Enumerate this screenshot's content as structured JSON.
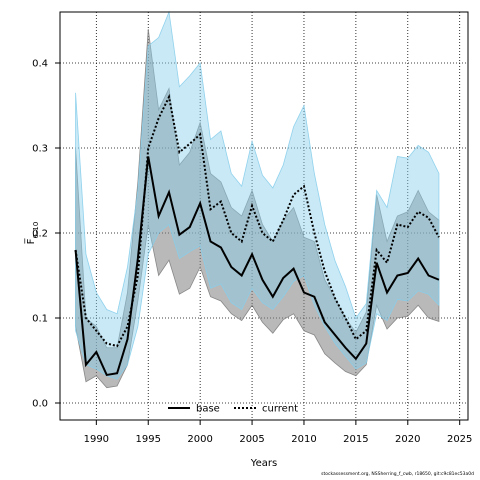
{
  "chart_data": {
    "type": "line",
    "title": "",
    "xlabel": "Years",
    "ylabel": "F̅",
    "ylabel_subscript": "6–10",
    "xlim": [
      1986.5,
      2025.8
    ],
    "ylim": [
      -0.02,
      0.46
    ],
    "x_ticks": [
      1990,
      1995,
      2000,
      2005,
      2010,
      2015,
      2020,
      2025
    ],
    "y_ticks": [
      0.0,
      0.1,
      0.2,
      0.3,
      0.4
    ],
    "y_tick_labels": [
      "0.0",
      "0.1",
      "0.2",
      "0.3",
      "0.4"
    ],
    "grid": true,
    "legend_placement": "bottom-center",
    "x": [
      1988,
      1989,
      1990,
      1991,
      1992,
      1993,
      1994,
      1995,
      1996,
      1997,
      1998,
      1999,
      2000,
      2001,
      2002,
      2003,
      2004,
      2005,
      2006,
      2007,
      2008,
      2009,
      2010,
      2011,
      2012,
      2013,
      2014,
      2015,
      2016,
      2017,
      2018,
      2019,
      2020,
      2021,
      2022,
      2023
    ],
    "series": [
      {
        "name": "base",
        "color": "#000000",
        "band_color": "#808080",
        "dash": "solid",
        "values": [
          0.18,
          0.045,
          0.06,
          0.033,
          0.035,
          0.075,
          0.17,
          0.29,
          0.22,
          0.248,
          0.198,
          0.207,
          0.235,
          0.19,
          0.183,
          0.16,
          0.15,
          0.175,
          0.145,
          0.125,
          0.147,
          0.158,
          0.13,
          0.125,
          0.095,
          0.08,
          0.065,
          0.052,
          0.07,
          0.165,
          0.13,
          0.15,
          0.153,
          0.17,
          0.15,
          0.145
        ],
        "lower": [
          0.09,
          0.025,
          0.032,
          0.018,
          0.02,
          0.045,
          0.12,
          0.21,
          0.15,
          0.168,
          0.128,
          0.135,
          0.16,
          0.125,
          0.12,
          0.105,
          0.097,
          0.115,
          0.095,
          0.082,
          0.098,
          0.105,
          0.085,
          0.08,
          0.058,
          0.047,
          0.037,
          0.032,
          0.045,
          0.115,
          0.087,
          0.1,
          0.102,
          0.115,
          0.1,
          0.096
        ],
        "upper": [
          0.3,
          0.1,
          0.09,
          0.065,
          0.065,
          0.13,
          0.26,
          0.44,
          0.345,
          0.37,
          0.28,
          0.295,
          0.33,
          0.27,
          0.26,
          0.23,
          0.22,
          0.25,
          0.21,
          0.19,
          0.215,
          0.23,
          0.195,
          0.19,
          0.145,
          0.123,
          0.1,
          0.083,
          0.107,
          0.245,
          0.19,
          0.22,
          0.225,
          0.25,
          0.225,
          0.215
        ]
      },
      {
        "name": "current",
        "color": "#000000",
        "band_color": "#87ceeb",
        "dash": "dotted",
        "values": [
          0.18,
          0.1,
          0.085,
          0.07,
          0.067,
          0.09,
          0.15,
          0.3,
          0.335,
          0.36,
          0.295,
          0.305,
          0.316,
          0.228,
          0.237,
          0.2,
          0.19,
          0.232,
          0.2,
          0.19,
          0.215,
          0.245,
          0.255,
          0.2,
          0.155,
          0.123,
          0.1,
          0.075,
          0.085,
          0.18,
          0.165,
          0.21,
          0.207,
          0.225,
          0.218,
          0.195
        ],
        "lower": [
          0.085,
          0.045,
          0.04,
          0.032,
          0.028,
          0.045,
          0.09,
          0.175,
          0.2,
          0.21,
          0.17,
          0.178,
          0.185,
          0.135,
          0.14,
          0.118,
          0.11,
          0.135,
          0.118,
          0.11,
          0.125,
          0.143,
          0.15,
          0.115,
          0.09,
          0.07,
          0.055,
          0.04,
          0.047,
          0.105,
          0.097,
          0.122,
          0.12,
          0.132,
          0.128,
          0.115
        ],
        "upper": [
          0.365,
          0.175,
          0.13,
          0.11,
          0.105,
          0.16,
          0.25,
          0.42,
          0.43,
          0.46,
          0.372,
          0.385,
          0.4,
          0.31,
          0.32,
          0.27,
          0.255,
          0.308,
          0.268,
          0.253,
          0.28,
          0.325,
          0.35,
          0.27,
          0.21,
          0.167,
          0.137,
          0.1,
          0.117,
          0.25,
          0.23,
          0.29,
          0.288,
          0.303,
          0.295,
          0.27
        ]
      }
    ]
  },
  "footer_text": "stockassessment.org, NSSherring_f_cwb, r18650, git:c9c81ec53a0d"
}
